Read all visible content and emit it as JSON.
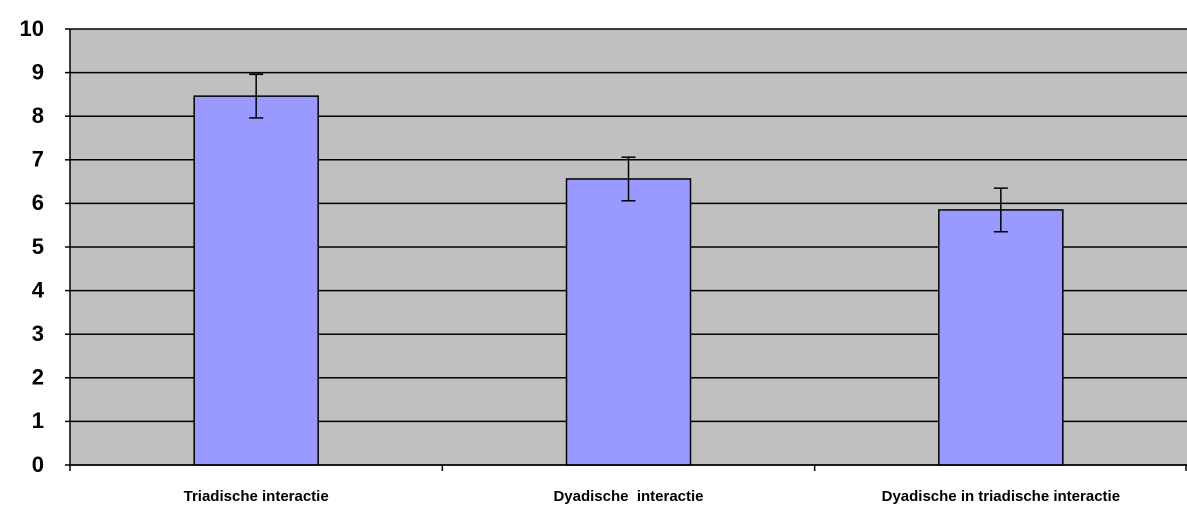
{
  "chart_data": {
    "type": "bar",
    "categories": [
      "Triadische interactie",
      "Dyadische  interactie",
      "Dyadische in triadische interactie"
    ],
    "values": [
      8.46,
      6.56,
      5.85
    ],
    "errors": [
      0.5,
      0.5,
      0.5
    ],
    "color": "#9999ff",
    "ylim": [
      0,
      10
    ],
    "yticks": [
      0,
      1,
      2,
      3,
      4,
      5,
      6,
      7,
      8,
      9,
      10
    ],
    "grid": true
  }
}
